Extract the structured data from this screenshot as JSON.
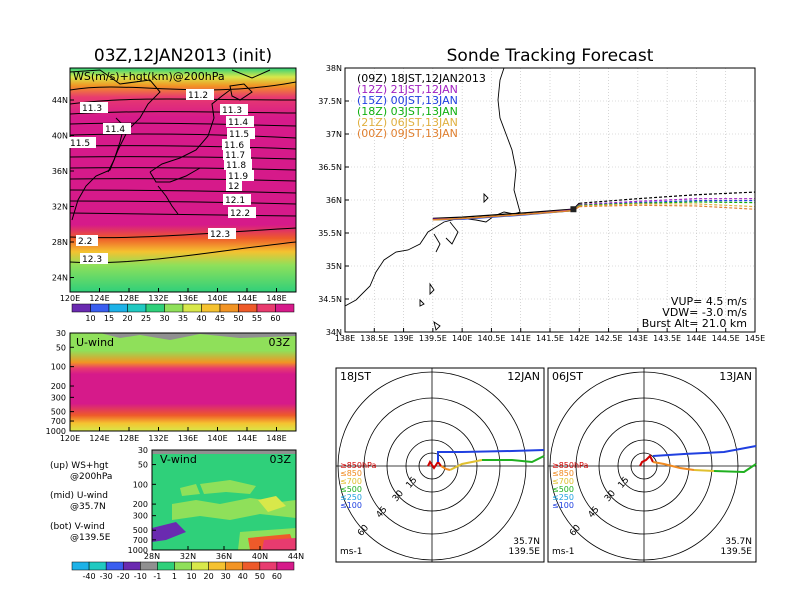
{
  "left_title": "03Z,12JAN2013 (init)",
  "right_title": "Sonde Tracking Forecast",
  "colors": {
    "bar": [
      "#6a2ab0",
      "#3a5ef0",
      "#1db2e8",
      "#20c9c1",
      "#2fd07a",
      "#8fe05a",
      "#d8e84a",
      "#f5c230",
      "#f29424",
      "#ee5a2a",
      "#e83b6f",
      "#d61a8a"
    ]
  },
  "ws_panel": {
    "label": "WS(m/s)+hgt(km)@200hPa",
    "lat_ticks": [
      "44N",
      "40N",
      "36N",
      "32N",
      "28N",
      "24N"
    ],
    "lon_ticks": [
      "120E",
      "124E",
      "128E",
      "132E",
      "136E",
      "140E",
      "144E",
      "148E"
    ],
    "contour_labels": [
      "11.2",
      "11.3",
      "11.3",
      "11.4",
      "11.4",
      "11.5",
      "11.5",
      "11.6",
      "11.7",
      "11.8",
      "11.9",
      "12",
      "12.1",
      "12.2",
      "12.3",
      "2.2",
      "12.3"
    ],
    "colorbar_ticks": [
      "10",
      "15",
      "20",
      "25",
      "30",
      "35",
      "40",
      "45",
      "50",
      "55",
      "60"
    ]
  },
  "u_panel": {
    "label": "U-wind",
    "time": "03Z",
    "p_ticks": [
      "30",
      "50",
      "100",
      "200",
      "300",
      "500",
      "700",
      "1000"
    ],
    "lon_ticks": [
      "120E",
      "124E",
      "128E",
      "132E",
      "136E",
      "140E",
      "144E",
      "148E"
    ]
  },
  "v_panel": {
    "label": "V-wind",
    "time": "03Z",
    "p_ticks": [
      "30",
      "50",
      "100",
      "200",
      "300",
      "500",
      "700",
      "1000"
    ],
    "lat_ticks": [
      "28N",
      "32N",
      "36N",
      "40N",
      "44N"
    ],
    "colorbar_ticks": [
      "-40",
      "-30",
      "-20",
      "-10",
      "-1",
      "1",
      "10",
      "20",
      "30",
      "40",
      "50",
      "60"
    ]
  },
  "legend_notes": [
    "(up) WS+hgt",
    "@200hPa",
    "(mid) U-wind",
    "@35.7N",
    "(bot) V-wind",
    "@139.5E"
  ],
  "chart_data": [
    {
      "type": "line",
      "title": "Sonde Tracking Forecast",
      "lat_ticks": [
        "38N",
        "37.5N",
        "37N",
        "36.5N",
        "36N",
        "35.5N",
        "35N",
        "34.5N",
        "34N"
      ],
      "lon_ticks": [
        "138E",
        "138.5E",
        "139E",
        "139.5E",
        "140E",
        "140.5E",
        "141E",
        "141.5E",
        "142E",
        "142.5E",
        "143E",
        "143.5E",
        "144E",
        "144.5E",
        "145E"
      ],
      "xlim": [
        138,
        145
      ],
      "ylim": [
        34,
        38
      ],
      "series": [
        {
          "name": "(09Z)  18JST,12JAN2013",
          "color": "#000000",
          "x": [
            139.5,
            140.0,
            141.0,
            141.9,
            142.0,
            143.0,
            144.0,
            145.0
          ],
          "y": [
            35.72,
            35.74,
            35.8,
            35.86,
            35.95,
            36.02,
            36.08,
            36.12
          ]
        },
        {
          "name": "(12Z)  21JST,12JAN",
          "color": "#a020c0",
          "x": [
            139.5,
            140.0,
            141.0,
            141.9,
            142.0,
            143.0,
            144.0,
            145.0
          ],
          "y": [
            35.71,
            35.72,
            35.78,
            35.85,
            35.93,
            35.98,
            36.02,
            36.02
          ]
        },
        {
          "name": "(15Z)  00JST,13JAN",
          "color": "#2040e0",
          "x": [
            139.5,
            140.0,
            141.0,
            141.9,
            142.0,
            143.0,
            144.0,
            145.0
          ],
          "y": [
            35.7,
            35.71,
            35.77,
            35.84,
            35.92,
            35.96,
            35.99,
            35.99
          ]
        },
        {
          "name": "(18Z)  03JST,13JAN",
          "color": "#10b010",
          "x": [
            139.5,
            140.0,
            141.0,
            141.9,
            142.0,
            143.0,
            144.0,
            145.0
          ],
          "y": [
            35.7,
            35.72,
            35.78,
            35.84,
            35.92,
            35.95,
            35.97,
            35.96
          ]
        },
        {
          "name": "(21Z)  06JST,13JAN",
          "color": "#e0b040",
          "x": [
            139.5,
            140.0,
            141.0,
            141.9,
            142.0,
            143.0,
            144.0,
            145.0
          ],
          "y": [
            35.7,
            35.72,
            35.78,
            35.84,
            35.91,
            35.94,
            35.94,
            35.9
          ]
        },
        {
          "name": "(00Z)  09JST,13JAN",
          "color": "#e08030",
          "x": [
            139.5,
            140.0,
            141.0,
            141.9,
            142.0,
            143.0,
            144.0,
            145.0
          ],
          "y": [
            35.7,
            35.72,
            35.78,
            35.84,
            35.9,
            35.92,
            35.91,
            35.86
          ]
        }
      ],
      "annotations": [
        "VUP= 4.5 m/s",
        "VDW= -3.0 m/s",
        "Burst Alt= 21.0 km"
      ]
    },
    {
      "type": "line",
      "panel": "hodograph",
      "time": "18JST",
      "date": "12JAN",
      "ring_labels": [
        "15",
        "30",
        "45",
        "60"
      ],
      "level_legend": [
        "≥850hPa",
        "≤850",
        "≤700",
        "≤500",
        "≤250",
        "≤100"
      ],
      "unit": "ms-1",
      "location": [
        "35.7N",
        "139.5E"
      ]
    },
    {
      "type": "line",
      "panel": "hodograph",
      "time": "06JST",
      "date": "13JAN",
      "ring_labels": [
        "15",
        "30",
        "45",
        "60"
      ],
      "level_legend": [
        "≥850hPa",
        "≤850",
        "≤700",
        "≤500",
        "≤250",
        "≤100"
      ],
      "unit": "ms-1",
      "location": [
        "35.7N",
        "139.5E"
      ]
    }
  ]
}
